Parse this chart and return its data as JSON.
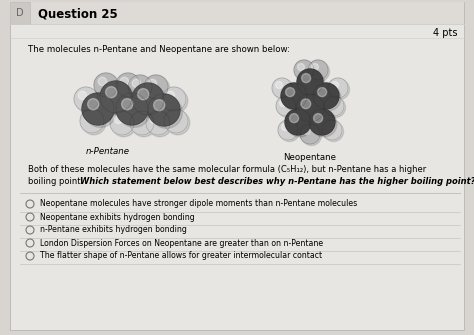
{
  "bg_color": "#d8d4d0",
  "card_color": "#e8e6e2",
  "border_color": "#bbbbbb",
  "title": "Question 25",
  "pts": "4 pts",
  "intro_text": "The molecules n-Pentane and Neopentane are shown below:",
  "label_left": "n-Pentane",
  "label_right": "Neopentane",
  "body_line1": "Both of these molecules have the same molecular formula (C₅H₁₂), but n-Pentane has a higher",
  "body_line2_normal": "boiling point.  ",
  "body_line2_bold": "Which statement below best describes why n-Pentane has the higher boiling point?",
  "options": [
    "Neopentane molecules have stronger dipole moments than n-Pentane molecules",
    "Neopentane exhibits hydrogen bonding",
    "n-Pentane exhibits hydrogen bonding",
    "London Dispersion Forces on Neopentane are greater than on n-Pentane",
    "The flatter shape of n-Pentane allows for greater intermolecular contact"
  ],
  "sidebar_color": "#9ab0c8",
  "divider_color": "#bbbbbb",
  "title_line_color": "#cccccc",
  "question_num_color": "#555555"
}
